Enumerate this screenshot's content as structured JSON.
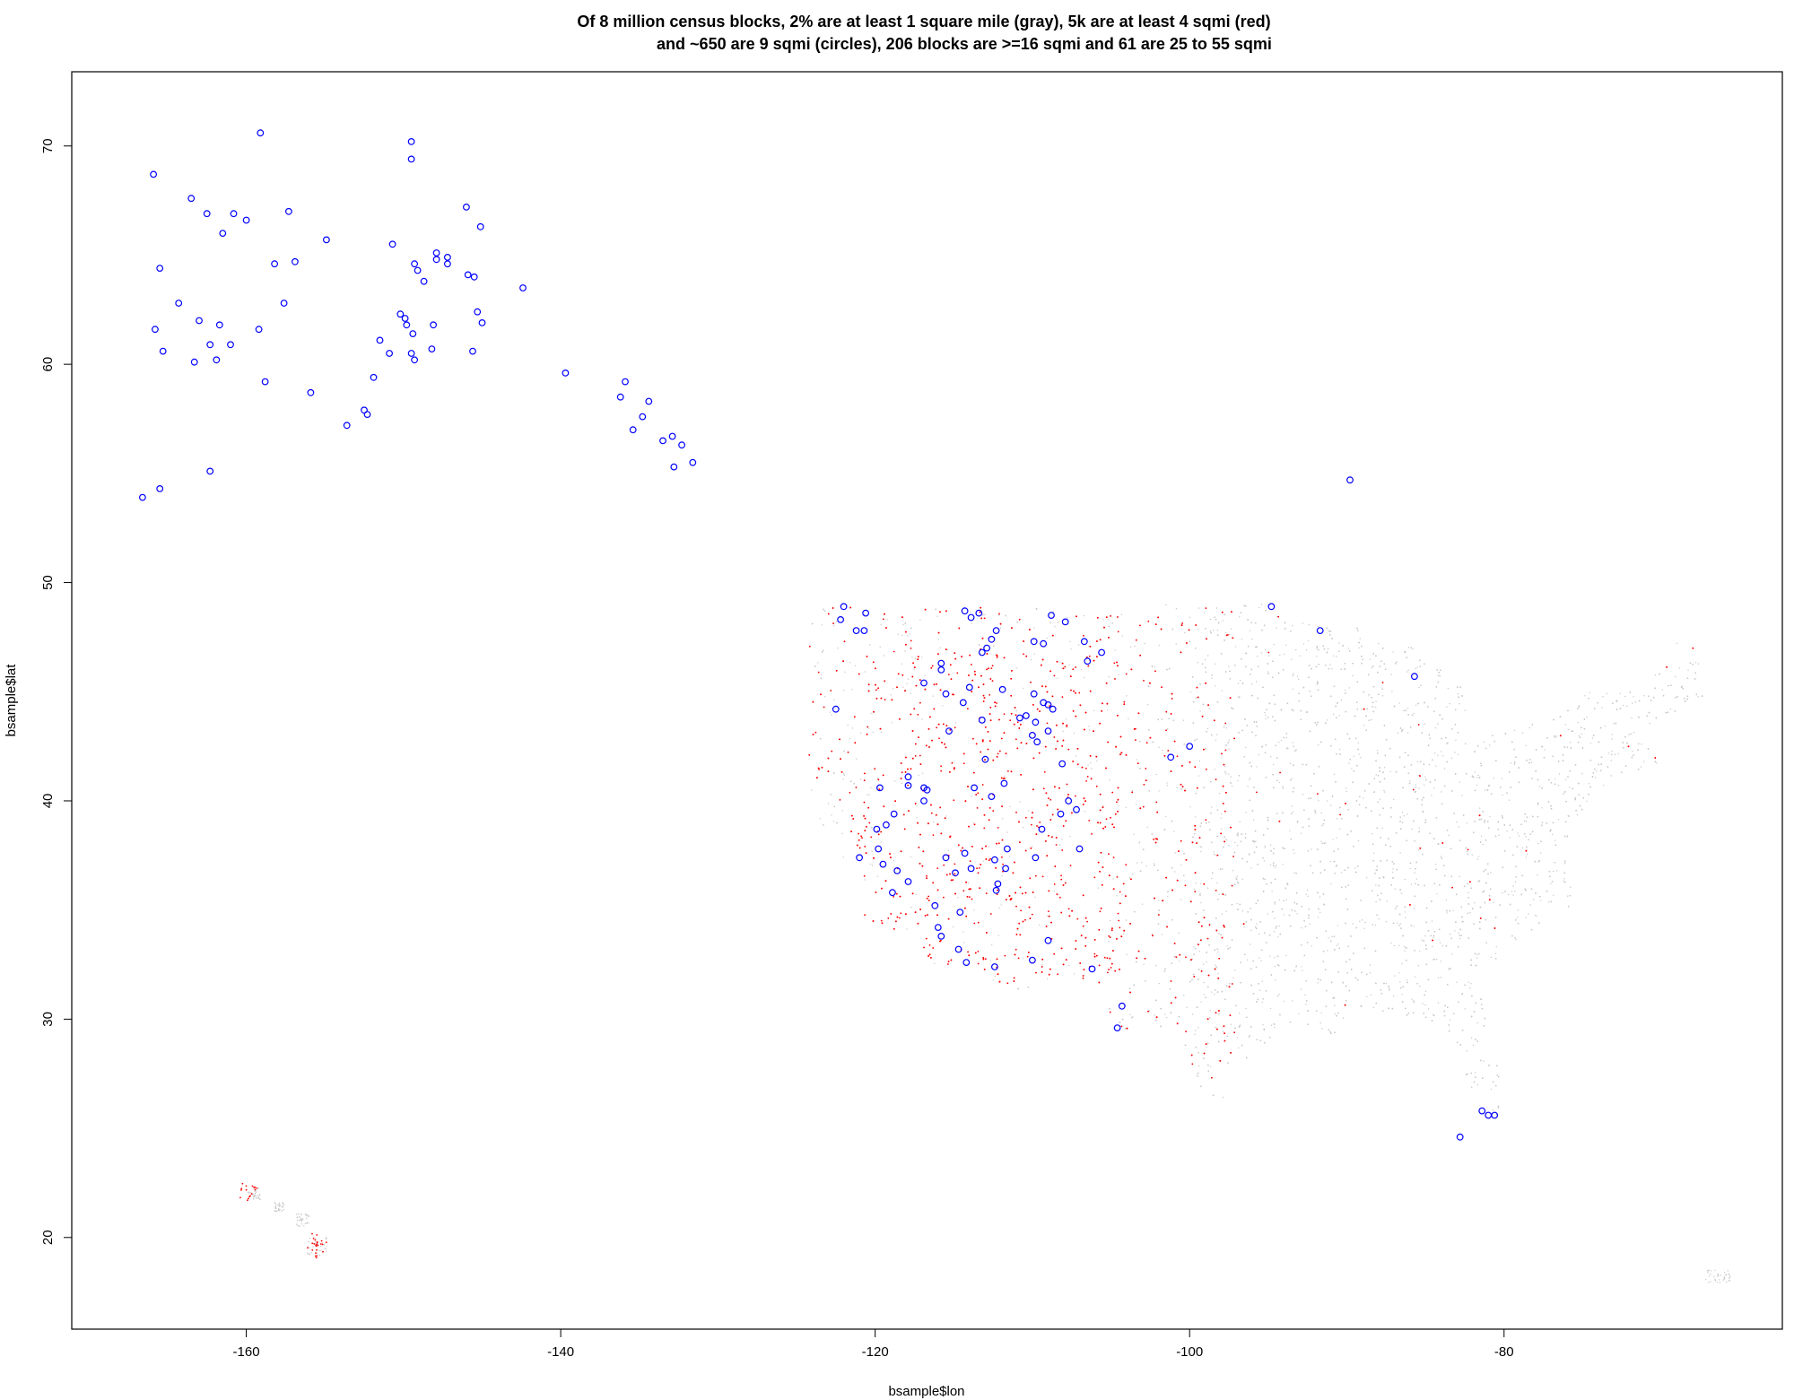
{
  "chart_data": {
    "type": "scatter",
    "title": [
      "Of 8 million census blocks, 2% are at least 1 square mile (gray), 5k are at least 4 sqmi (red)",
      "and ~650 are 9 sqmi (circles), 206 blocks are >=16 sqmi and 61 are 25 to 55 sqmi"
    ],
    "xlabel": "bsample$lon",
    "ylabel": "bsample$lat",
    "xlim": [
      -171.1,
      -62.3
    ],
    "ylim": [
      15.8,
      73.4
    ],
    "xticks": [
      -160,
      -140,
      -120,
      -100,
      -80
    ],
    "yticks": [
      20,
      30,
      40,
      50,
      60,
      70
    ],
    "grid": false,
    "legend": "none",
    "colors": {
      "gray_points": "#c8c8c8",
      "red_points": "#ff0000",
      "circles": "#0000ff",
      "axes": "#000000"
    },
    "series": [
      {
        "marker": "open-circle",
        "color": "#0000ff",
        "points": [
          [
            -165.9,
            68.7
          ],
          [
            -159.1,
            70.6
          ],
          [
            -149.5,
            70.2
          ],
          [
            -149.5,
            69.4
          ],
          [
            -163.5,
            67.6
          ],
          [
            -162.5,
            66.9
          ],
          [
            -160.8,
            66.9
          ],
          [
            -160.0,
            66.6
          ],
          [
            -157.3,
            67.0
          ],
          [
            -161.5,
            66.0
          ],
          [
            -165.5,
            64.4
          ],
          [
            -158.2,
            64.6
          ],
          [
            -156.9,
            64.7
          ],
          [
            -154.9,
            65.7
          ],
          [
            -150.7,
            65.5
          ],
          [
            -149.3,
            64.6
          ],
          [
            -149.1,
            64.3
          ],
          [
            -148.7,
            63.8
          ],
          [
            -147.9,
            65.1
          ],
          [
            -147.9,
            64.8
          ],
          [
            -147.2,
            64.9
          ],
          [
            -147.2,
            64.6
          ],
          [
            -146.0,
            67.2
          ],
          [
            -145.9,
            64.1
          ],
          [
            -145.5,
            64.0
          ],
          [
            -145.1,
            66.3
          ],
          [
            -142.4,
            63.5
          ],
          [
            -164.3,
            62.8
          ],
          [
            -157.6,
            62.8
          ],
          [
            -163.0,
            62.0
          ],
          [
            -161.7,
            61.8
          ],
          [
            -165.8,
            61.6
          ],
          [
            -159.2,
            61.6
          ],
          [
            -162.3,
            60.9
          ],
          [
            -161.0,
            60.9
          ],
          [
            -165.3,
            60.6
          ],
          [
            -163.3,
            60.1
          ],
          [
            -161.9,
            60.2
          ],
          [
            -150.2,
            62.3
          ],
          [
            -149.9,
            62.1
          ],
          [
            -149.8,
            61.8
          ],
          [
            -149.4,
            61.4
          ],
          [
            -151.5,
            61.1
          ],
          [
            -150.9,
            60.5
          ],
          [
            -149.5,
            60.5
          ],
          [
            -149.3,
            60.2
          ],
          [
            -148.1,
            61.8
          ],
          [
            -148.2,
            60.7
          ],
          [
            -145.3,
            62.4
          ],
          [
            -145.0,
            61.9
          ],
          [
            -145.6,
            60.6
          ],
          [
            -151.9,
            59.4
          ],
          [
            -158.8,
            59.2
          ],
          [
            -155.9,
            58.7
          ],
          [
            -152.5,
            57.9
          ],
          [
            -152.3,
            57.7
          ],
          [
            -153.6,
            57.2
          ],
          [
            -139.7,
            59.6
          ],
          [
            -135.9,
            59.2
          ],
          [
            -136.2,
            58.5
          ],
          [
            -134.4,
            58.3
          ],
          [
            -134.8,
            57.6
          ],
          [
            -135.4,
            57.0
          ],
          [
            -133.5,
            56.5
          ],
          [
            -132.9,
            56.7
          ],
          [
            -132.3,
            56.3
          ],
          [
            -131.6,
            55.5
          ],
          [
            -132.8,
            55.3
          ],
          [
            -162.3,
            55.1
          ],
          [
            -165.5,
            54.3
          ],
          [
            -166.6,
            53.9
          ],
          [
            -89.8,
            54.7
          ],
          [
            -122.0,
            48.9
          ],
          [
            -120.6,
            48.6
          ],
          [
            -121.2,
            47.8
          ],
          [
            -120.7,
            47.8
          ],
          [
            -122.2,
            48.3
          ],
          [
            -122.5,
            44.2
          ],
          [
            -114.3,
            48.7
          ],
          [
            -113.4,
            48.6
          ],
          [
            -113.9,
            48.4
          ],
          [
            -112.3,
            47.8
          ],
          [
            -112.6,
            47.4
          ],
          [
            -112.9,
            47.0
          ],
          [
            -113.2,
            46.8
          ],
          [
            -108.8,
            48.5
          ],
          [
            -107.9,
            48.2
          ],
          [
            -109.9,
            47.3
          ],
          [
            -109.3,
            47.2
          ],
          [
            -106.7,
            47.3
          ],
          [
            -105.6,
            46.8
          ],
          [
            -106.5,
            46.4
          ],
          [
            -115.8,
            46.3
          ],
          [
            -115.8,
            46.0
          ],
          [
            -116.9,
            45.4
          ],
          [
            -115.5,
            44.9
          ],
          [
            -114.0,
            45.2
          ],
          [
            -114.4,
            44.5
          ],
          [
            -111.9,
            45.1
          ],
          [
            -109.9,
            44.9
          ],
          [
            -109.3,
            44.5
          ],
          [
            -109.0,
            44.4
          ],
          [
            -108.7,
            44.2
          ],
          [
            -110.4,
            43.9
          ],
          [
            -110.8,
            43.8
          ],
          [
            -109.8,
            43.6
          ],
          [
            -109.0,
            43.2
          ],
          [
            -113.2,
            43.7
          ],
          [
            -115.3,
            43.2
          ],
          [
            -110.0,
            43.0
          ],
          [
            -109.7,
            42.7
          ],
          [
            -113.0,
            41.9
          ],
          [
            -108.1,
            41.7
          ],
          [
            -117.9,
            41.1
          ],
          [
            -117.9,
            40.7
          ],
          [
            -119.7,
            40.6
          ],
          [
            -116.9,
            40.6
          ],
          [
            -116.7,
            40.5
          ],
          [
            -113.7,
            40.6
          ],
          [
            -111.8,
            40.8
          ],
          [
            -112.6,
            40.2
          ],
          [
            -107.7,
            40.0
          ],
          [
            -108.2,
            39.4
          ],
          [
            -107.2,
            39.6
          ],
          [
            -116.9,
            40.0
          ],
          [
            -118.8,
            39.4
          ],
          [
            -119.3,
            38.9
          ],
          [
            -119.9,
            38.7
          ],
          [
            -109.4,
            38.7
          ],
          [
            -119.8,
            37.8
          ],
          [
            -121.0,
            37.4
          ],
          [
            -119.5,
            37.1
          ],
          [
            -118.6,
            36.8
          ],
          [
            -117.9,
            36.3
          ],
          [
            -115.5,
            37.4
          ],
          [
            -114.3,
            37.6
          ],
          [
            -113.9,
            36.9
          ],
          [
            -114.9,
            36.7
          ],
          [
            -112.4,
            37.3
          ],
          [
            -111.6,
            37.8
          ],
          [
            -111.7,
            36.9
          ],
          [
            -112.2,
            36.2
          ],
          [
            -112.3,
            35.9
          ],
          [
            -109.8,
            37.4
          ],
          [
            -107.0,
            37.8
          ],
          [
            -118.9,
            35.8
          ],
          [
            -116.2,
            35.2
          ],
          [
            -116.0,
            34.2
          ],
          [
            -115.8,
            33.8
          ],
          [
            -114.6,
            34.9
          ],
          [
            -114.7,
            33.2
          ],
          [
            -114.2,
            32.6
          ],
          [
            -112.4,
            32.4
          ],
          [
            -110.0,
            32.7
          ],
          [
            -109.0,
            33.6
          ],
          [
            -106.2,
            32.3
          ],
          [
            -104.3,
            30.6
          ],
          [
            -104.6,
            29.6
          ],
          [
            -101.2,
            42.0
          ],
          [
            -100.0,
            42.5
          ],
          [
            -94.8,
            48.9
          ],
          [
            -91.7,
            47.8
          ],
          [
            -85.7,
            45.7
          ],
          [
            -81.4,
            25.8
          ],
          [
            -81.0,
            25.6
          ],
          [
            -80.6,
            25.6
          ],
          [
            -82.8,
            24.6
          ]
        ]
      }
    ]
  }
}
